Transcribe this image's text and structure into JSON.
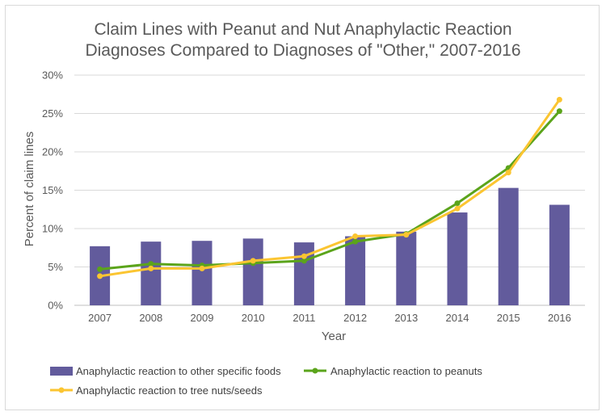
{
  "chart_data": {
    "type": "bar",
    "title_line1": "Claim Lines with Peanut and Nut Anaphylactic Reaction",
    "title_line2": "Diagnoses Compared to Diagnoses of \"Other,\" 2007-2016",
    "xlabel": "Year",
    "ylabel": "Percent of claim lines",
    "categories": [
      "2007",
      "2008",
      "2009",
      "2010",
      "2011",
      "2012",
      "2013",
      "2014",
      "2015",
      "2016"
    ],
    "ylim": [
      0,
      30
    ],
    "yticks": [
      0,
      5,
      10,
      15,
      20,
      25,
      30
    ],
    "ytick_labels": [
      "0%",
      "5%",
      "10%",
      "15%",
      "20%",
      "25%",
      "30%"
    ],
    "grid": true,
    "legend_position": "bottom",
    "series": [
      {
        "name": "Anaphylactic reaction to other specific foods",
        "kind": "bar",
        "color": "#625b9c",
        "values": [
          7.7,
          8.3,
          8.4,
          8.7,
          8.2,
          9.0,
          9.6,
          12.1,
          15.3,
          13.1
        ]
      },
      {
        "name": "Anaphylactic reaction to peanuts",
        "kind": "line",
        "color": "#5ba41b",
        "values": [
          4.7,
          5.4,
          5.2,
          5.5,
          5.8,
          8.3,
          9.3,
          13.3,
          17.9,
          25.3
        ]
      },
      {
        "name": "Anaphylactic reaction to tree nuts/seeds",
        "kind": "line",
        "color": "#fbc531",
        "values": [
          3.8,
          4.8,
          4.8,
          5.8,
          6.4,
          9.0,
          9.2,
          12.6,
          17.3,
          26.8
        ]
      }
    ]
  }
}
